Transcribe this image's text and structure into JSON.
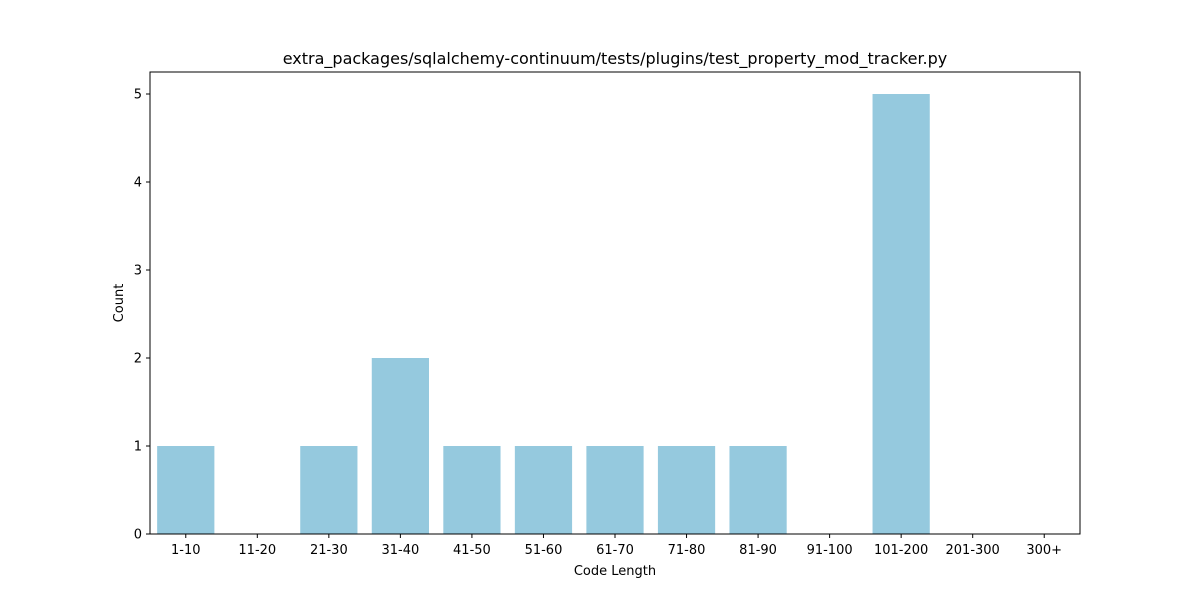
{
  "chart_data": {
    "type": "bar",
    "title": "extra_packages/sqlalchemy-continuum/tests/plugins/test_property_mod_tracker.py",
    "xlabel": "Code Length",
    "ylabel": "Count",
    "categories": [
      "1-10",
      "11-20",
      "21-30",
      "31-40",
      "41-50",
      "51-60",
      "61-70",
      "71-80",
      "81-90",
      "91-100",
      "101-200",
      "201-300",
      "300+"
    ],
    "values": [
      1,
      0,
      1,
      2,
      1,
      1,
      1,
      1,
      1,
      0,
      5,
      0,
      0
    ],
    "ylim": [
      0,
      5.25
    ],
    "yticks": [
      0,
      1,
      2,
      3,
      4,
      5
    ],
    "grid": false,
    "bar_color": "#95c9de"
  }
}
